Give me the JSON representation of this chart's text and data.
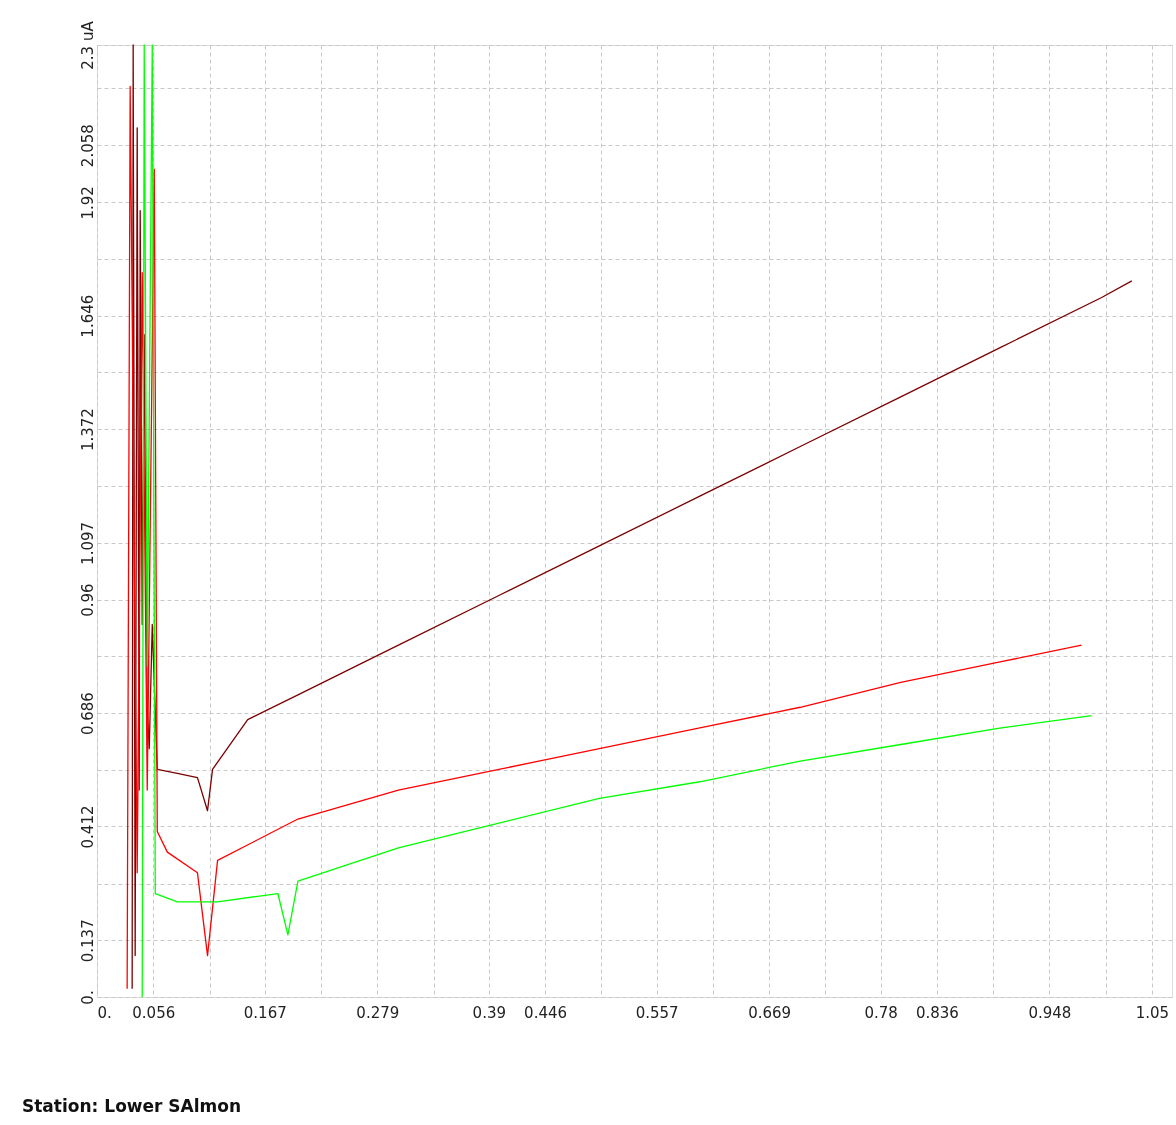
{
  "chart_data": {
    "type": "line",
    "xlim": [
      0,
      1.07
    ],
    "ylim": [
      0,
      2.3
    ],
    "xticks": [
      {
        "value": 0,
        "label": "0."
      },
      0.056,
      {
        "value": 0.112,
        "label": null
      },
      0.167,
      {
        "value": 0.223,
        "label": null
      },
      0.279,
      {
        "value": 0.335,
        "label": null
      },
      0.39,
      0.446,
      {
        "value": 0.502,
        "label": null
      },
      0.557,
      {
        "value": 0.613,
        "label": null
      },
      0.669,
      {
        "value": 0.725,
        "label": null
      },
      0.78,
      0.836,
      {
        "value": 0.892,
        "label": null
      },
      0.948,
      {
        "value": 1.004,
        "label": null
      },
      1.05
    ],
    "yticks": [
      {
        "value": 0,
        "label": "0."
      },
      0.137,
      {
        "value": 0.274,
        "label": null
      },
      0.412,
      {
        "value": 0.549,
        "label": null
      },
      0.686,
      {
        "value": 0.823,
        "label": null
      },
      0.96,
      1.097,
      {
        "value": 1.235,
        "label": null
      },
      1.372,
      {
        "value": 1.509,
        "label": null
      },
      1.646,
      {
        "value": 1.783,
        "label": null
      },
      1.92,
      2.058,
      {
        "value": 2.195,
        "label": null
      },
      {
        "value": 2.3,
        "label": "2.3 uA"
      }
    ],
    "grid": true,
    "marker": "none",
    "line_style": "solid",
    "annotations": [
      "Station: Lower SAlmon"
    ],
    "series": [
      {
        "color": "#7b0000",
        "x": [
          0.035,
          0.036,
          0.038,
          0.04,
          0.042,
          0.043,
          0.045,
          0.047,
          0.05,
          0.052,
          0.055,
          0.06,
          0.08,
          0.1,
          0.11,
          0.115,
          0.15,
          0.2,
          0.3,
          0.4,
          0.5,
          0.6,
          0.7,
          0.8,
          0.9,
          1.0,
          1.03
        ],
        "values": [
          0.02,
          2.3,
          0.1,
          2.1,
          0.5,
          1.9,
          0.9,
          1.6,
          0.7,
          0.6,
          0.9,
          0.55,
          0.54,
          0.53,
          0.45,
          0.55,
          0.67,
          0.73,
          0.85,
          0.97,
          1.09,
          1.21,
          1.33,
          1.45,
          1.57,
          1.69,
          1.73
        ]
      },
      {
        "color": "#ff0000",
        "x": [
          0.03,
          0.033,
          0.04,
          0.045,
          0.05,
          0.057,
          0.06,
          0.07,
          0.1,
          0.11,
          0.12,
          0.2,
          0.3,
          0.4,
          0.5,
          0.6,
          0.7,
          0.8,
          0.9,
          0.98
        ],
        "values": [
          0.02,
          2.2,
          0.3,
          1.75,
          0.5,
          2.0,
          0.4,
          0.35,
          0.3,
          0.1,
          0.33,
          0.43,
          0.5,
          0.55,
          0.6,
          0.65,
          0.7,
          0.76,
          0.81,
          0.85
        ]
      },
      {
        "color": "#00ff00",
        "x": [
          0.045,
          0.047,
          0.05,
          0.055,
          0.058,
          0.08,
          0.12,
          0.18,
          0.19,
          0.2,
          0.3,
          0.4,
          0.5,
          0.6,
          0.7,
          0.8,
          0.9,
          0.99
        ],
        "values": [
          0.0,
          2.3,
          0.8,
          2.3,
          0.25,
          0.23,
          0.23,
          0.25,
          0.15,
          0.28,
          0.36,
          0.42,
          0.48,
          0.52,
          0.57,
          0.61,
          0.65,
          0.68
        ]
      }
    ]
  }
}
